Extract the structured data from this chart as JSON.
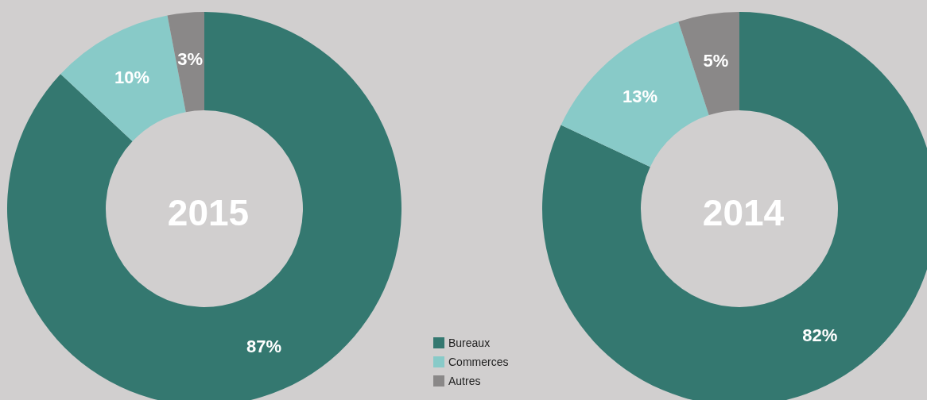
{
  "chart_data": [
    {
      "type": "donut",
      "title": "2015",
      "categories": [
        "Bureaux",
        "Commerces",
        "Autres"
      ],
      "values": [
        87,
        10,
        3
      ],
      "value_labels": [
        "87%",
        "10%",
        "3%"
      ],
      "colors": [
        "#347870",
        "#88cac8",
        "#8a8888"
      ],
      "legend": "bottom right"
    },
    {
      "type": "donut",
      "title": "2014",
      "categories": [
        null,
        null,
        null
      ],
      "values": [
        82,
        13,
        5
      ],
      "value_labels": [
        "82%",
        "13%",
        "5%"
      ],
      "colors": [
        "#347870",
        "#88cac8",
        "#8a8888"
      ]
    }
  ]
}
